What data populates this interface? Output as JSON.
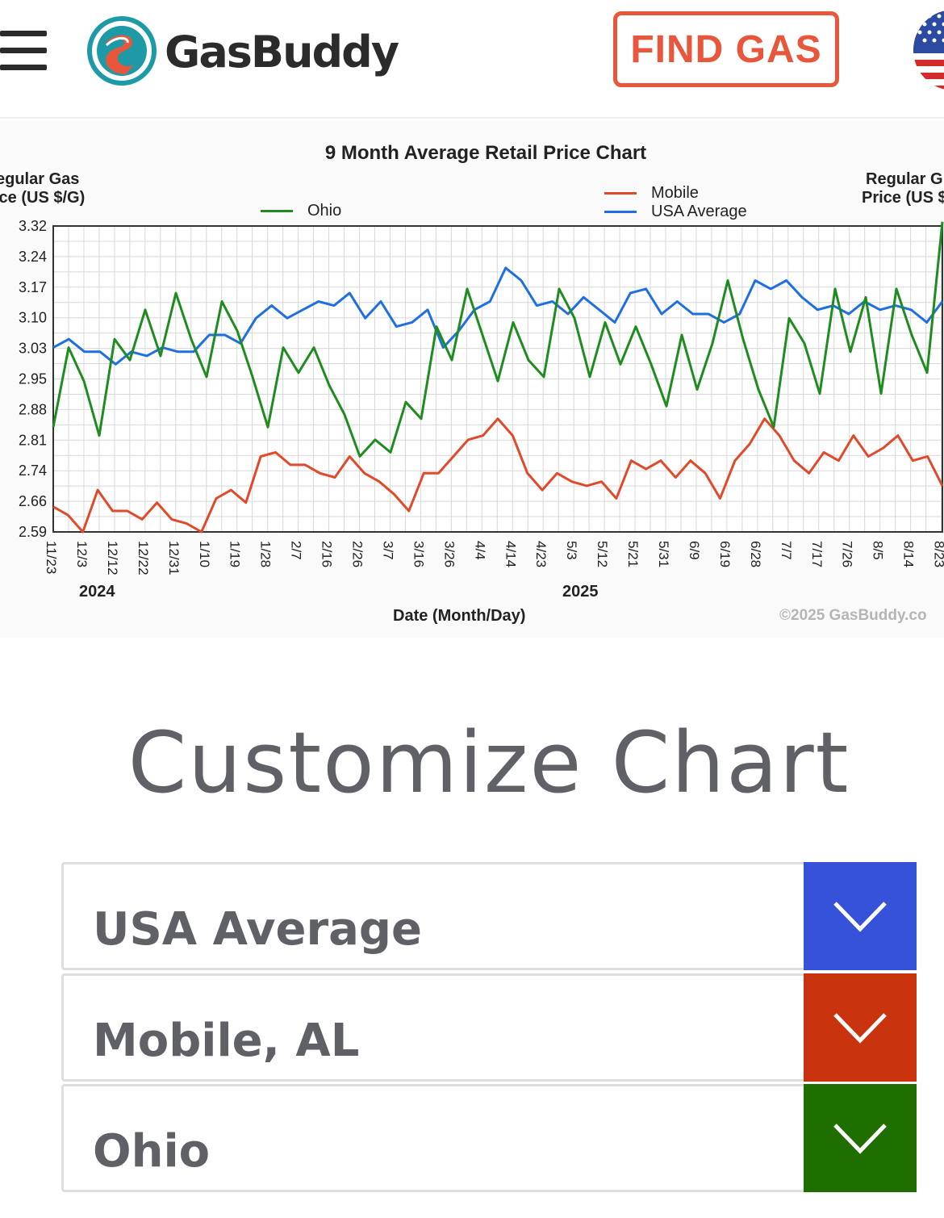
{
  "header": {
    "brand_name": "GasBuddy",
    "find_gas_label": "FIND GAS",
    "menu_icon": "hamburger-menu-icon",
    "logo_icon": "gasbuddy-logo-icon",
    "flag_icon": "us-flag-icon",
    "brand_color": "#e8573c"
  },
  "chart_data": {
    "type": "line",
    "title": "9 Month Average Retail Price Chart",
    "ylabel_left": "Regular Gas Price (US $/G)",
    "ylabel_left_visible": [
      "egular Gas",
      "ice (US $/G)"
    ],
    "ylabel_right_visible": [
      "Regular G",
      "Price (US $"
    ],
    "xlabel": "Date (Month/Day)",
    "copyright": "©2025 GasBuddy.co",
    "year_labels": [
      "2024",
      "2025"
    ],
    "yticks": [
      "3.32",
      "3.24",
      "3.17",
      "3.10",
      "3.03",
      "2.95",
      "2.88",
      "2.81",
      "2.74",
      "2.66",
      "2.59"
    ],
    "ylim": [
      2.59,
      3.32
    ],
    "xtick_labels": [
      "11/23",
      "12/3",
      "12/12",
      "12/22",
      "12/31",
      "1/10",
      "1/19",
      "1/28",
      "2/7",
      "2/16",
      "2/26",
      "3/7",
      "3/16",
      "3/26",
      "4/4",
      "4/14",
      "4/23",
      "5/3",
      "5/12",
      "5/21",
      "5/31",
      "6/9",
      "6/19",
      "6/28",
      "7/7",
      "7/17",
      "7/26",
      "8/5",
      "8/14",
      "8/23"
    ],
    "grid": true,
    "legend": [
      {
        "name": "Ohio",
        "color": "#1e8c1e"
      },
      {
        "name": "Mobile",
        "color": "#e04a2a"
      },
      {
        "name": "USA Average",
        "color": "#1f6fe0"
      }
    ],
    "series": [
      {
        "name": "USA Average",
        "color": "#1f6fe0",
        "values": [
          3.03,
          3.05,
          3.02,
          3.02,
          2.99,
          3.02,
          3.01,
          3.03,
          3.02,
          3.02,
          3.06,
          3.06,
          3.04,
          3.1,
          3.13,
          3.1,
          3.12,
          3.14,
          3.13,
          3.16,
          3.1,
          3.14,
          3.08,
          3.09,
          3.12,
          3.03,
          3.07,
          3.12,
          3.14,
          3.22,
          3.19,
          3.13,
          3.14,
          3.11,
          3.15,
          3.12,
          3.09,
          3.16,
          3.17,
          3.11,
          3.14,
          3.11,
          3.11,
          3.09,
          3.11,
          3.19,
          3.17,
          3.19,
          3.15,
          3.12,
          3.13,
          3.11,
          3.14,
          3.12,
          3.13,
          3.12,
          3.09,
          3.14
        ]
      },
      {
        "name": "Mobile",
        "color": "#e04a2a",
        "values": [
          2.65,
          2.63,
          2.59,
          2.69,
          2.64,
          2.64,
          2.62,
          2.66,
          2.62,
          2.61,
          2.59,
          2.67,
          2.69,
          2.66,
          2.77,
          2.78,
          2.75,
          2.75,
          2.73,
          2.72,
          2.77,
          2.73,
          2.71,
          2.68,
          2.64,
          2.73,
          2.73,
          2.77,
          2.81,
          2.82,
          2.86,
          2.82,
          2.73,
          2.69,
          2.73,
          2.71,
          2.7,
          2.71,
          2.67,
          2.76,
          2.74,
          2.76,
          2.72,
          2.76,
          2.73,
          2.67,
          2.76,
          2.8,
          2.86,
          2.82,
          2.76,
          2.73,
          2.78,
          2.76,
          2.82,
          2.77,
          2.79,
          2.82,
          2.76,
          2.77,
          2.7
        ]
      },
      {
        "name": "Ohio",
        "color": "#1e8c1e",
        "values": [
          2.84,
          3.03,
          2.95,
          2.82,
          3.05,
          3.0,
          3.12,
          3.01,
          3.16,
          3.05,
          2.96,
          3.14,
          3.07,
          2.96,
          2.84,
          3.03,
          2.97,
          3.03,
          2.94,
          2.87,
          2.77,
          2.81,
          2.78,
          2.9,
          2.86,
          3.08,
          3.0,
          3.17,
          3.06,
          2.95,
          3.09,
          3.0,
          2.96,
          3.17,
          3.1,
          2.96,
          3.09,
          2.99,
          3.08,
          2.99,
          2.89,
          3.06,
          2.93,
          3.04,
          3.19,
          3.05,
          2.93,
          2.84,
          3.1,
          3.04,
          2.92,
          3.17,
          3.02,
          3.15,
          2.92,
          3.17,
          3.06,
          2.97,
          3.33
        ]
      }
    ]
  },
  "customize": {
    "title": "Customize Chart",
    "selectors": [
      {
        "label": "USA Average",
        "color": "#3652d9",
        "icon": "chevron-down-icon"
      },
      {
        "label": "Mobile, AL",
        "color": "#c9330e",
        "icon": "chevron-down-icon"
      },
      {
        "label": "Ohio",
        "color": "#1f6e00",
        "icon": "chevron-down-icon"
      }
    ]
  }
}
